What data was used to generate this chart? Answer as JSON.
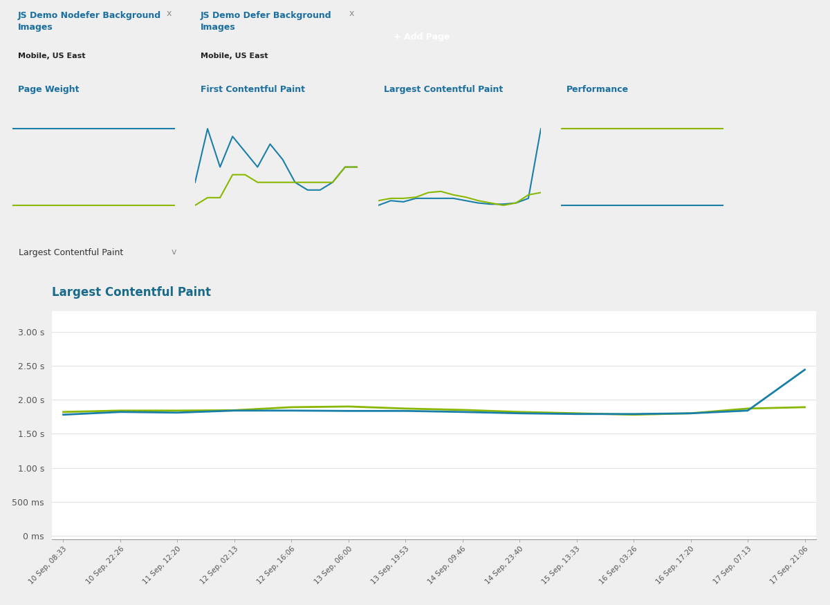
{
  "bg_color": "#efefef",
  "panel_bg": "#ffffff",
  "title_color": "#1a6fa0",
  "text_color": "#333333",
  "grid_color": "#e2e2e2",
  "border_color": "#d0d0d0",
  "page_title": "JS Demo Nodefer Background\nImages",
  "page_title2": "JS Demo Defer Background\nImages",
  "page_subtitle": "Mobile, US East",
  "add_page_btn": "+ Add Page",
  "add_page_color": "#1a7fa8",
  "mini_titles": [
    "Page Weight",
    "First Contentful Paint",
    "Largest Contentful Paint",
    "Performance"
  ],
  "mini_title_color": "#1a6fa0",
  "dropdown_label": "Largest Contentful Paint",
  "main_chart_title": "Largest Contentful Paint",
  "main_chart_title_color": "#1a6a8a",
  "blue_color": "#1a7fa8",
  "green_color": "#8ab800",
  "yticks_labels": [
    "0 ms",
    "500 ms",
    "1.00 s",
    "1.50 s",
    "2.00 s",
    "2.50 s",
    "3.00 s"
  ],
  "yticks_values": [
    0,
    500,
    1000,
    1500,
    2000,
    2500,
    3000
  ],
  "xtick_labels": [
    "10 Sep, 08:33",
    "10 Sep, 22:26",
    "11 Sep, 12:20",
    "12 Sep, 02:13",
    "12 Sep, 16:06",
    "13 Sep, 06:00",
    "13 Sep, 19:53",
    "14 Sep, 09:46",
    "14 Sep, 23:40",
    "15 Sep, 13:33",
    "16 Sep, 03:26",
    "16 Sep, 17:20",
    "17 Sep, 07:13",
    "17 Sep, 21:06"
  ],
  "nodefer_x": [
    0,
    1,
    2,
    3,
    4,
    5,
    6,
    7,
    8,
    9,
    10,
    11,
    12,
    13
  ],
  "nodefer_y": [
    1780,
    1820,
    1810,
    1840,
    1840,
    1835,
    1835,
    1820,
    1800,
    1790,
    1790,
    1800,
    1840,
    2440
  ],
  "defer_x": [
    0,
    1,
    2,
    3,
    4,
    5,
    6,
    7,
    8,
    9,
    10,
    11,
    12,
    13
  ],
  "defer_y": [
    1820,
    1840,
    1840,
    1845,
    1890,
    1900,
    1870,
    1850,
    1820,
    1800,
    1780,
    1800,
    1870,
    1890
  ],
  "legend_label1": "JS Demo Nodefer Background Images (Mobile, US East)",
  "legend_label2": "JS Demo Defer Background Images (Mobile, US East)",
  "mini_nodefer_page_weight": [
    1.0,
    1.0,
    1.0,
    1.0,
    1.0,
    1.0,
    1.0,
    1.0,
    1.0,
    1.0,
    1.0,
    1.0,
    1.0,
    1.0
  ],
  "mini_defer_page_weight": [
    0.42,
    0.42,
    0.42,
    0.42,
    0.42,
    0.42,
    0.42,
    0.42,
    0.42,
    0.42,
    0.42,
    0.42,
    0.42,
    0.42
  ],
  "mini_nodefer_fcp": [
    1.8,
    1.87,
    1.82,
    1.86,
    1.84,
    1.82,
    1.85,
    1.83,
    1.8,
    1.79,
    1.79,
    1.8,
    1.82,
    1.82
  ],
  "mini_defer_fcp": [
    1.77,
    1.78,
    1.78,
    1.81,
    1.81,
    1.8,
    1.8,
    1.8,
    1.8,
    1.8,
    1.8,
    1.8,
    1.82,
    1.82
  ],
  "mini_nodefer_lcp": [
    1.78,
    1.82,
    1.81,
    1.84,
    1.84,
    1.84,
    1.84,
    1.82,
    1.8,
    1.79,
    1.79,
    1.8,
    1.84,
    2.44
  ],
  "mini_defer_lcp": [
    1.82,
    1.84,
    1.84,
    1.85,
    1.89,
    1.9,
    1.87,
    1.85,
    1.82,
    1.8,
    1.78,
    1.8,
    1.87,
    1.89
  ],
  "mini_nodefer_perf": [
    0.82,
    0.82,
    0.82,
    0.82,
    0.82,
    0.82,
    0.82,
    0.82,
    0.82,
    0.82,
    0.82,
    0.82,
    0.82,
    0.82
  ],
  "mini_defer_perf": [
    0.83,
    0.83,
    0.83,
    0.83,
    0.83,
    0.83,
    0.83,
    0.83,
    0.83,
    0.83,
    0.83,
    0.83,
    0.83,
    0.83
  ]
}
